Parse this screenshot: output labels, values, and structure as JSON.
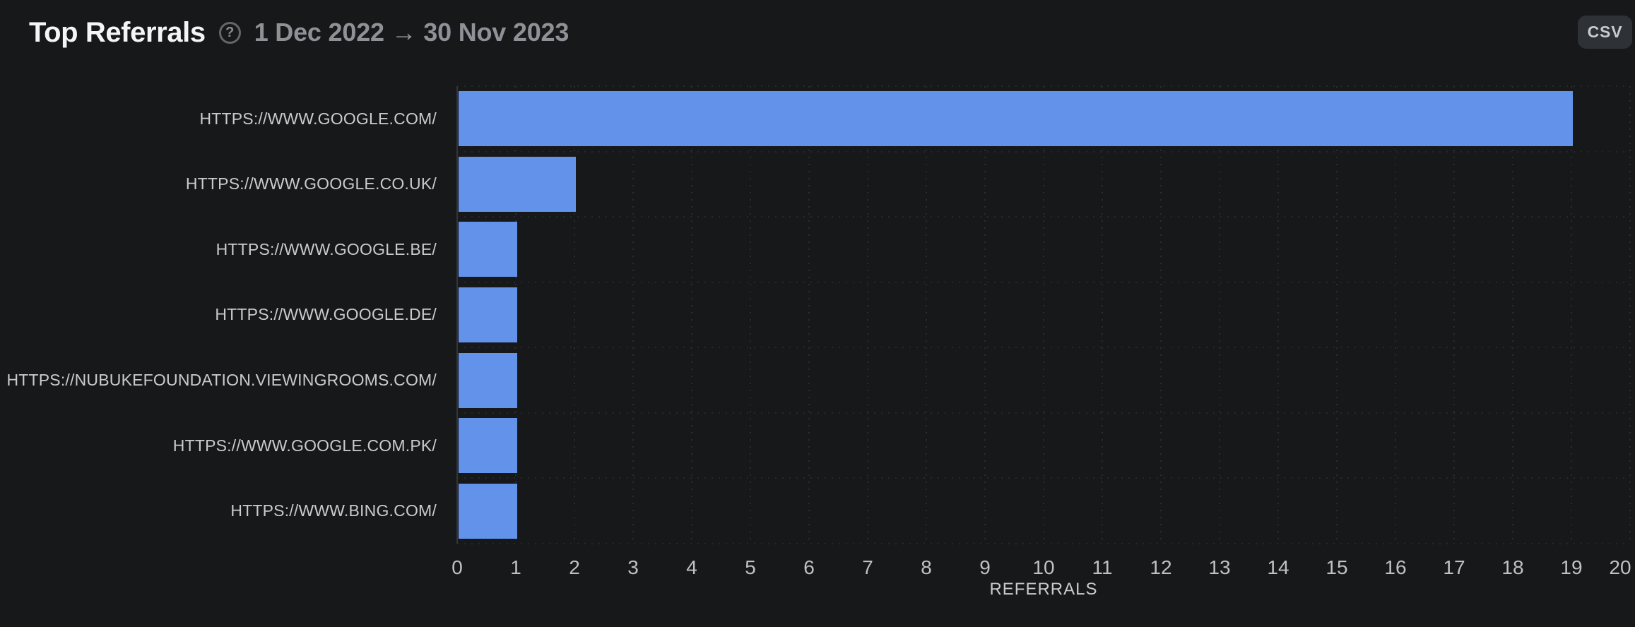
{
  "header": {
    "title": "Top Referrals",
    "help_icon_glyph": "?",
    "date_range": "1 Dec 2022 → 30 Nov 2023",
    "csv_button_label": "CSV"
  },
  "chart_data": {
    "type": "bar",
    "orientation": "horizontal",
    "title": "Top Referrals",
    "xlabel": "REFERRALS",
    "ylabel": "",
    "xlim": [
      0,
      20
    ],
    "x_tick_step": 1,
    "grid": "dotted",
    "legend": "none",
    "bar_color": "#6292e9",
    "categories": [
      "HTTPS://WWW.GOOGLE.COM/",
      "HTTPS://WWW.GOOGLE.CO.UK/",
      "HTTPS://WWW.GOOGLE.BE/",
      "HTTPS://WWW.GOOGLE.DE/",
      "HTTPS://NUBUKEFOUNDATION.VIEWINGROOMS.COM/",
      "HTTPS://WWW.GOOGLE.COM.PK/",
      "HTTPS://WWW.BING.COM/"
    ],
    "values": [
      19,
      2,
      1,
      1,
      1,
      1,
      1
    ]
  },
  "colors": {
    "background": "#17181a",
    "bar": "#6292e9",
    "title_text": "#f4f5f6",
    "secondary_text": "#8e9196",
    "axis_text": "#bfc1c4",
    "label_text": "#c9cbce",
    "csv_button_bg": "#2e3136",
    "gridline": "#2a2c2f"
  }
}
